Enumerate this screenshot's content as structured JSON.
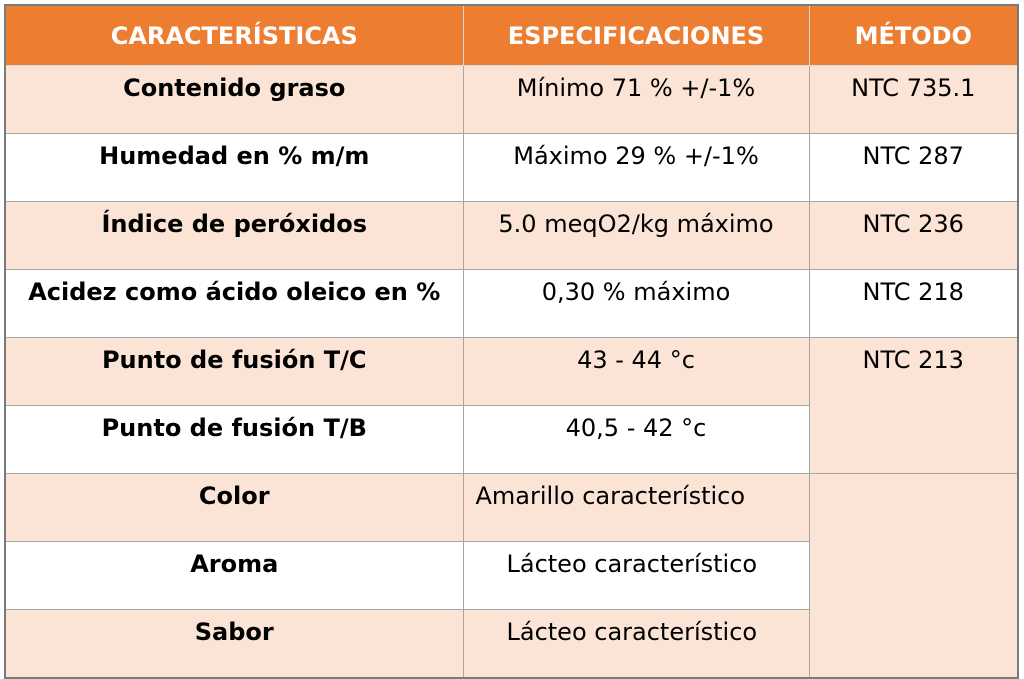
{
  "headers": {
    "caracteristicas": "CARACTERÍSTICAS",
    "especificaciones": "ESPECIFICACIONES",
    "metodo": "MÉTODO"
  },
  "rows": [
    {
      "caracteristica": "Contenido graso",
      "especificacion": "Mínimo 71 % +/-1%",
      "metodo": "NTC 735.1"
    },
    {
      "caracteristica": "Humedad en % m/m",
      "especificacion": "Máximo 29 % +/-1%",
      "metodo": "NTC 287"
    },
    {
      "caracteristica": "Índice de peróxidos",
      "especificacion": "5.0 meqO2/kg máximo",
      "metodo": "NTC 236"
    },
    {
      "caracteristica": "Acidez como ácido oleico en %",
      "especificacion": "0,30 % máximo",
      "metodo": "NTC 218"
    },
    {
      "caracteristica": "Punto de fusión T/C",
      "especificacion": "43 - 44 °c",
      "metodo": "NTC 213"
    },
    {
      "caracteristica": "Punto de fusión T/B",
      "especificacion": "40,5 - 42 °c"
    },
    {
      "caracteristica": "Color",
      "especificacion": "Amarillo característico"
    },
    {
      "caracteristica": "Aroma",
      "especificacion": "Lácteo característico"
    },
    {
      "caracteristica": "Sabor",
      "especificacion": "Lácteo característico"
    }
  ],
  "colors": {
    "header_bg": "#ed7d31",
    "header_text": "#ffffff",
    "band_row_bg": "#fbe4d5",
    "plain_row_bg": "#ffffff"
  }
}
